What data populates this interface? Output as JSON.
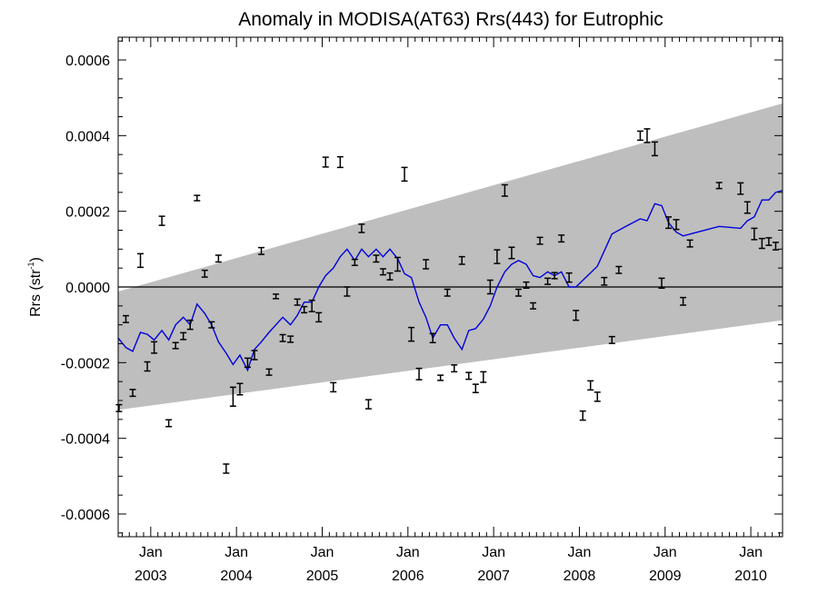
{
  "chart_data": {
    "type": "line",
    "title": "Anomaly in MODISA(AT63) Rrs(443) for Eutrophic",
    "ylabel_main": "Rrs (str",
    "ylabel_sup": "-1",
    "ylabel_close": ")",
    "xlabel": "",
    "xlim": [
      2002.62,
      2010.37
    ],
    "ylim": [
      -0.00066,
      0.00066
    ],
    "grid": false,
    "yticks": [
      {
        "value": -0.0006,
        "label": "-0.0006"
      },
      {
        "value": -0.0004,
        "label": "-0.0004"
      },
      {
        "value": -0.0002,
        "label": "-0.0002"
      },
      {
        "value": 0.0,
        "label": "0.0000"
      },
      {
        "value": 0.0002,
        "label": "0.0002"
      },
      {
        "value": 0.0004,
        "label": "0.0004"
      },
      {
        "value": 0.0006,
        "label": "0.0006"
      }
    ],
    "xticks": [
      {
        "value": 2003.0,
        "month": "Jan",
        "year": "2003"
      },
      {
        "value": 2004.0,
        "month": "Jan",
        "year": "2004"
      },
      {
        "value": 2005.0,
        "month": "Jan",
        "year": "2005"
      },
      {
        "value": 2006.0,
        "month": "Jan",
        "year": "2006"
      },
      {
        "value": 2007.0,
        "month": "Jan",
        "year": "2007"
      },
      {
        "value": 2008.0,
        "month": "Jan",
        "year": "2008"
      },
      {
        "value": 2009.0,
        "month": "Jan",
        "year": "2009"
      },
      {
        "value": 2010.0,
        "month": "Jan",
        "year": "2010"
      }
    ],
    "band": {
      "color": "#bebebe",
      "lower": [
        [
          2002.62,
          -0.000325
        ],
        [
          2010.37,
          -8.8e-05
        ]
      ],
      "upper": [
        [
          2002.62,
          -1.2e-05
        ],
        [
          2010.37,
          0.000485
        ]
      ]
    },
    "zero_line": 0.0,
    "series": [
      {
        "kind": "errorbar",
        "color": "#000000",
        "points": [
          [
            2002.63,
            -0.00032,
            9e-06
          ],
          [
            2002.71,
            -8.5e-05,
            9e-06
          ],
          [
            2002.79,
            -0.00028,
            9e-06
          ],
          [
            2002.88,
            7e-05,
            1.8e-05
          ],
          [
            2002.96,
            -0.00021,
            1.2e-05
          ],
          [
            2003.04,
            -0.00016,
            1.5e-05
          ],
          [
            2003.13,
            0.000175,
            1.2e-05
          ],
          [
            2003.21,
            -0.00036,
            9e-06
          ],
          [
            2003.29,
            -0.000155,
            8e-06
          ],
          [
            2003.38,
            -0.00013,
            9e-06
          ],
          [
            2003.46,
            -0.0001,
            1.2e-05
          ],
          [
            2003.54,
            0.000235,
            7e-06
          ],
          [
            2003.63,
            3.5e-05,
            9e-06
          ],
          [
            2003.71,
            -0.0001,
            8e-06
          ],
          [
            2003.79,
            7.5e-05,
            9e-06
          ],
          [
            2003.88,
            -0.00048,
            1.2e-05
          ],
          [
            2003.96,
            -0.00029,
            2.5e-05
          ],
          [
            2004.04,
            -0.00027,
            1.5e-05
          ],
          [
            2004.13,
            -0.0002,
            1.2e-05
          ],
          [
            2004.21,
            -0.00018,
            1.2e-05
          ],
          [
            2004.29,
            9.5e-05,
            9e-06
          ],
          [
            2004.38,
            -0.000225,
            8e-06
          ],
          [
            2004.46,
            -2.5e-05,
            6e-06
          ],
          [
            2004.54,
            -0.000135,
            9e-06
          ],
          [
            2004.63,
            -0.000138,
            8e-06
          ],
          [
            2004.71,
            -4e-05,
            8e-06
          ],
          [
            2004.79,
            -6e-05,
            8e-06
          ],
          [
            2004.88,
            -5e-05,
            1.5e-05
          ],
          [
            2004.96,
            -8e-05,
            1.2e-05
          ],
          [
            2005.04,
            0.00033,
            1.3e-05
          ],
          [
            2005.13,
            -0.000265,
            1.2e-05
          ],
          [
            2005.21,
            0.00033,
            1.4e-05
          ],
          [
            2005.29,
            -1.2e-05,
            1.2e-05
          ],
          [
            2005.38,
            6.5e-05,
            8e-06
          ],
          [
            2005.46,
            0.000155,
            1.1e-05
          ],
          [
            2005.54,
            -0.00031,
            1.2e-05
          ],
          [
            2005.63,
            7.5e-05,
            9e-06
          ],
          [
            2005.71,
            4e-05,
            8e-06
          ],
          [
            2005.79,
            2.8e-05,
            9e-06
          ],
          [
            2005.88,
            6e-05,
            1.8e-05
          ],
          [
            2005.96,
            0.000298,
            1.8e-05
          ],
          [
            2006.04,
            -0.000125,
            1.8e-05
          ],
          [
            2006.13,
            -0.00023,
            1.5e-05
          ],
          [
            2006.21,
            6e-05,
            1.2e-05
          ],
          [
            2006.29,
            -0.000135,
            1.2e-05
          ],
          [
            2006.38,
            -0.00024,
            7e-06
          ],
          [
            2006.46,
            -1.5e-05,
            9e-06
          ],
          [
            2006.54,
            -0.000215,
            9e-06
          ],
          [
            2006.63,
            7e-05,
            1e-05
          ],
          [
            2006.71,
            -0.000235,
            9e-06
          ],
          [
            2006.79,
            -0.000268,
            1.1e-05
          ],
          [
            2006.88,
            -0.000238,
            1.4e-05
          ],
          [
            2006.96,
            0.0,
            1.8e-05
          ],
          [
            2007.04,
            8e-05,
            1.8e-05
          ],
          [
            2007.13,
            0.000255,
            1.5e-05
          ],
          [
            2007.21,
            9e-05,
            1.5e-05
          ],
          [
            2007.29,
            -1.5e-05,
            9e-06
          ],
          [
            2007.38,
            5e-06,
            8e-06
          ],
          [
            2007.46,
            -5e-05,
            8e-06
          ],
          [
            2007.54,
            0.000122,
            9e-06
          ],
          [
            2007.63,
            1.5e-05,
            8e-06
          ],
          [
            2007.71,
            3e-05,
            8e-06
          ],
          [
            2007.79,
            0.000128,
            9e-06
          ],
          [
            2007.88,
            2.5e-05,
            1.2e-05
          ],
          [
            2007.96,
            -7.5e-05,
            1.3e-05
          ],
          [
            2008.04,
            -0.00034,
            1.2e-05
          ],
          [
            2008.13,
            -0.00026,
            1.2e-05
          ],
          [
            2008.21,
            -0.00029,
            1.2e-05
          ],
          [
            2008.29,
            1.5e-05,
            1e-05
          ],
          [
            2008.38,
            -0.00014,
            9e-06
          ],
          [
            2008.46,
            4.5e-05,
            9e-06
          ],
          [
            2008.71,
            0.0004,
            1.2e-05
          ],
          [
            2008.79,
            0.0004,
            1.8e-05
          ],
          [
            2008.88,
            0.000365,
            1.8e-05
          ],
          [
            2008.96,
            1e-05,
            1.3e-05
          ],
          [
            2009.04,
            0.00017,
            1.5e-05
          ],
          [
            2009.13,
            0.000165,
            1.3e-05
          ],
          [
            2009.21,
            -3.8e-05,
            1e-05
          ],
          [
            2009.29,
            0.000115,
            9e-06
          ],
          [
            2009.63,
            0.000268,
            8e-06
          ],
          [
            2009.88,
            0.00026,
            1.5e-05
          ],
          [
            2009.96,
            0.00021,
            1.5e-05
          ],
          [
            2010.04,
            0.00014,
            1.5e-05
          ],
          [
            2010.13,
            0.000115,
            1.3e-05
          ],
          [
            2010.21,
            0.00012,
            1e-05
          ],
          [
            2010.29,
            0.000108,
            1e-05
          ]
        ]
      },
      {
        "kind": "line",
        "color": "#0000dd",
        "points": [
          [
            2002.62,
            -0.000135
          ],
          [
            2002.71,
            -0.00016
          ],
          [
            2002.79,
            -0.00017
          ],
          [
            2002.88,
            -0.00012
          ],
          [
            2002.96,
            -0.000125
          ],
          [
            2003.04,
            -0.00014
          ],
          [
            2003.13,
            -0.000115
          ],
          [
            2003.21,
            -0.00014
          ],
          [
            2003.29,
            -0.0001
          ],
          [
            2003.38,
            -8e-05
          ],
          [
            2003.46,
            -0.0001
          ],
          [
            2003.54,
            -4.5e-05
          ],
          [
            2003.63,
            -7e-05
          ],
          [
            2003.71,
            -0.0001
          ],
          [
            2003.79,
            -0.000145
          ],
          [
            2003.88,
            -0.000175
          ],
          [
            2003.96,
            -0.000205
          ],
          [
            2004.04,
            -0.00018
          ],
          [
            2004.13,
            -0.00022
          ],
          [
            2004.21,
            -0.000165
          ],
          [
            2004.29,
            -0.000145
          ],
          [
            2004.38,
            -0.00012
          ],
          [
            2004.46,
            -0.0001
          ],
          [
            2004.54,
            -8e-05
          ],
          [
            2004.63,
            -0.0001
          ],
          [
            2004.71,
            -7.5e-05
          ],
          [
            2004.79,
            -4e-05
          ],
          [
            2004.88,
            -4e-05
          ],
          [
            2004.96,
            0.0
          ],
          [
            2005.04,
            3e-05
          ],
          [
            2005.13,
            5e-05
          ],
          [
            2005.21,
            8e-05
          ],
          [
            2005.29,
            0.0001
          ],
          [
            2005.38,
            7e-05
          ],
          [
            2005.46,
            0.0001
          ],
          [
            2005.54,
            8e-05
          ],
          [
            2005.63,
            0.0001
          ],
          [
            2005.71,
            8e-05
          ],
          [
            2005.79,
            0.0001
          ],
          [
            2005.88,
            7.5e-05
          ],
          [
            2005.96,
            3.5e-05
          ],
          [
            2006.04,
            2.5e-05
          ],
          [
            2006.13,
            -4e-05
          ],
          [
            2006.21,
            -8e-05
          ],
          [
            2006.29,
            -0.000135
          ],
          [
            2006.38,
            -0.0001
          ],
          [
            2006.46,
            -0.0001
          ],
          [
            2006.54,
            -0.000135
          ],
          [
            2006.63,
            -0.000165
          ],
          [
            2006.71,
            -0.000115
          ],
          [
            2006.79,
            -0.00011
          ],
          [
            2006.88,
            -8.5e-05
          ],
          [
            2006.96,
            -5e-05
          ],
          [
            2007.04,
            0.0
          ],
          [
            2007.13,
            4e-05
          ],
          [
            2007.21,
            6e-05
          ],
          [
            2007.29,
            7e-05
          ],
          [
            2007.38,
            6e-05
          ],
          [
            2007.46,
            3e-05
          ],
          [
            2007.54,
            2.5e-05
          ],
          [
            2007.63,
            4e-05
          ],
          [
            2007.71,
            3e-05
          ],
          [
            2007.79,
            4e-05
          ],
          [
            2007.88,
            0.0
          ],
          [
            2007.96,
            0.0
          ],
          [
            2008.21,
            5.5e-05
          ],
          [
            2008.38,
            0.00014
          ],
          [
            2008.54,
            0.00016
          ],
          [
            2008.71,
            0.00018
          ],
          [
            2008.79,
            0.000175
          ],
          [
            2008.88,
            0.00022
          ],
          [
            2008.96,
            0.000215
          ],
          [
            2009.04,
            0.00017
          ],
          [
            2009.13,
            0.000145
          ],
          [
            2009.21,
            0.000135
          ],
          [
            2009.63,
            0.00016
          ],
          [
            2009.88,
            0.000155
          ],
          [
            2009.96,
            0.000175
          ],
          [
            2010.04,
            0.000185
          ],
          [
            2010.13,
            0.00023
          ],
          [
            2010.21,
            0.00023
          ],
          [
            2010.29,
            0.00025
          ],
          [
            2010.37,
            0.000255
          ]
        ]
      }
    ]
  }
}
